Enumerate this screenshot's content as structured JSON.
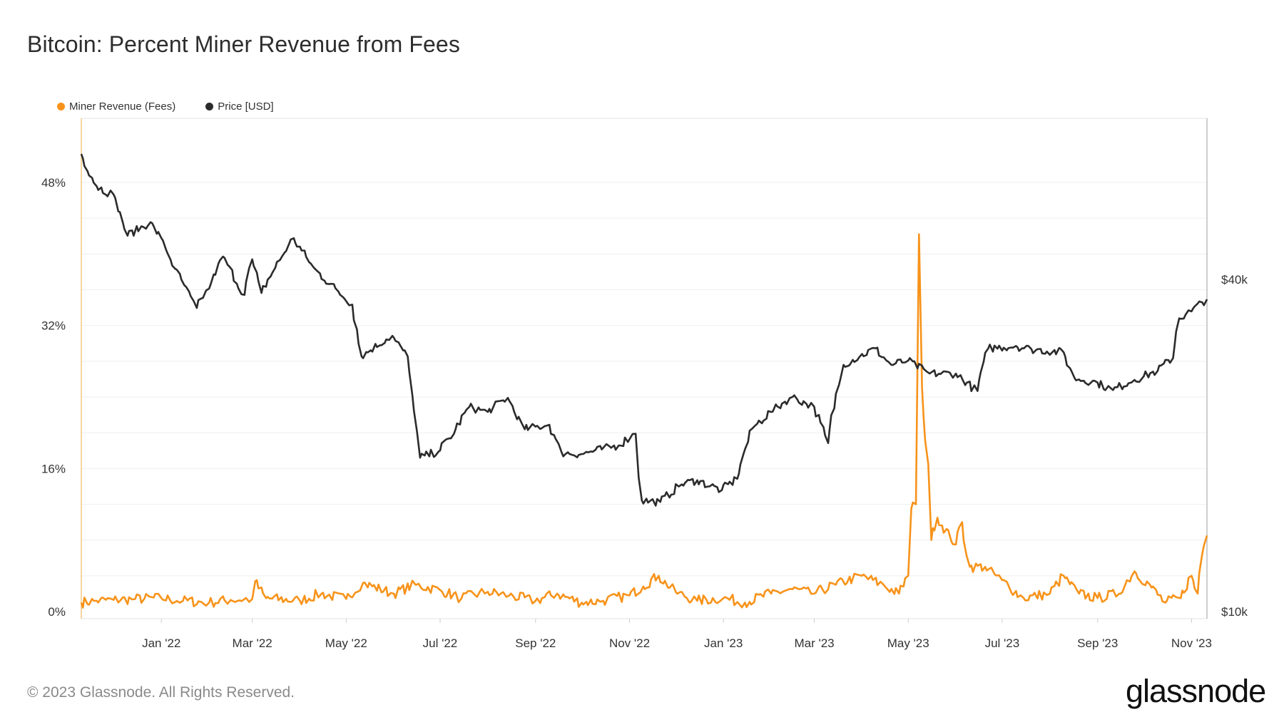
{
  "title": "Bitcoin: Percent Miner Revenue from Fees",
  "footer": "© 2023 Glassnode. All Rights Reserved.",
  "logo_text": "glassnode",
  "colors": {
    "fees": "#f7931a",
    "price": "#2b2b2b",
    "grid": "#ececec"
  },
  "chart_data": {
    "type": "line",
    "title": "Bitcoin: Percent Miner Revenue from Fees",
    "x_ticks": [
      "Jan '22",
      "Mar '22",
      "May '22",
      "Jul '22",
      "Sep '22",
      "Nov '22",
      "Jan '23",
      "Mar '23",
      "May '23",
      "Jul '23",
      "Sep '23",
      "Nov '23"
    ],
    "y_left_ticks": [
      "0%",
      "16%",
      "32%",
      "48%"
    ],
    "y_right_ticks": [
      "$10k",
      "$40k"
    ],
    "ylim_left": [
      0,
      0.56
    ],
    "ylim_right_scale": "log",
    "grid": true,
    "legend_position": "top-left",
    "series": [
      {
        "name": "Miner Revenue (Fees)",
        "axis": "left",
        "unit": "fraction",
        "points": [
          [
            "2021-11-10",
            0.01
          ],
          [
            "2021-11-20",
            0.012
          ],
          [
            "2021-12-01",
            0.013
          ],
          [
            "2021-12-15",
            0.014
          ],
          [
            "2022-01-01",
            0.015
          ],
          [
            "2022-01-15",
            0.012
          ],
          [
            "2022-02-01",
            0.01
          ],
          [
            "2022-02-15",
            0.013
          ],
          [
            "2022-03-01",
            0.014
          ],
          [
            "2022-03-03",
            0.034
          ],
          [
            "2022-03-10",
            0.015
          ],
          [
            "2022-04-01",
            0.012
          ],
          [
            "2022-04-15",
            0.02
          ],
          [
            "2022-05-01",
            0.014
          ],
          [
            "2022-05-12",
            0.032
          ],
          [
            "2022-06-01",
            0.02
          ],
          [
            "2022-06-15",
            0.03
          ],
          [
            "2022-07-01",
            0.024
          ],
          [
            "2022-07-15",
            0.015
          ],
          [
            "2022-08-01",
            0.022
          ],
          [
            "2022-08-15",
            0.018
          ],
          [
            "2022-09-01",
            0.012
          ],
          [
            "2022-09-15",
            0.02
          ],
          [
            "2022-10-01",
            0.01
          ],
          [
            "2022-10-15",
            0.012
          ],
          [
            "2022-11-01",
            0.018
          ],
          [
            "2022-11-10",
            0.028
          ],
          [
            "2022-11-20",
            0.04
          ],
          [
            "2022-12-01",
            0.022
          ],
          [
            "2022-12-15",
            0.012
          ],
          [
            "2023-01-01",
            0.015
          ],
          [
            "2023-01-15",
            0.01
          ],
          [
            "2023-02-01",
            0.02
          ],
          [
            "2023-02-15",
            0.025
          ],
          [
            "2023-03-01",
            0.02
          ],
          [
            "2023-03-15",
            0.03
          ],
          [
            "2023-04-01",
            0.04
          ],
          [
            "2023-04-15",
            0.03
          ],
          [
            "2023-04-25",
            0.02
          ],
          [
            "2023-05-01",
            0.04
          ],
          [
            "2023-05-03",
            0.115
          ],
          [
            "2023-05-06",
            0.12
          ],
          [
            "2023-05-08",
            0.422
          ],
          [
            "2023-05-10",
            0.25
          ],
          [
            "2023-05-14",
            0.165
          ],
          [
            "2023-05-16",
            0.08
          ],
          [
            "2023-05-20",
            0.105
          ],
          [
            "2023-06-01",
            0.075
          ],
          [
            "2023-06-05",
            0.1
          ],
          [
            "2023-06-10",
            0.05
          ],
          [
            "2023-06-20",
            0.05
          ],
          [
            "2023-07-01",
            0.035
          ],
          [
            "2023-07-15",
            0.015
          ],
          [
            "2023-08-01",
            0.02
          ],
          [
            "2023-08-10",
            0.04
          ],
          [
            "2023-08-20",
            0.02
          ],
          [
            "2023-09-01",
            0.015
          ],
          [
            "2023-09-15",
            0.02
          ],
          [
            "2023-09-25",
            0.045
          ],
          [
            "2023-10-05",
            0.03
          ],
          [
            "2023-10-15",
            0.01
          ],
          [
            "2023-10-25",
            0.015
          ],
          [
            "2023-11-01",
            0.04
          ],
          [
            "2023-11-05",
            0.02
          ],
          [
            "2023-11-08",
            0.065
          ],
          [
            "2023-11-11",
            0.085
          ]
        ]
      },
      {
        "name": "Price [USD]",
        "axis": "right",
        "unit": "USD",
        "points": [
          [
            "2021-11-10",
            67500
          ],
          [
            "2021-11-20",
            59000
          ],
          [
            "2021-12-01",
            57000
          ],
          [
            "2021-12-10",
            48000
          ],
          [
            "2021-12-25",
            50800
          ],
          [
            "2022-01-01",
            47500
          ],
          [
            "2022-01-10",
            41800
          ],
          [
            "2022-01-24",
            35500
          ],
          [
            "2022-02-01",
            38500
          ],
          [
            "2022-02-10",
            44000
          ],
          [
            "2022-02-24",
            37500
          ],
          [
            "2022-03-01",
            43500
          ],
          [
            "2022-03-07",
            37800
          ],
          [
            "2022-03-28",
            47500
          ],
          [
            "2022-04-10",
            42000
          ],
          [
            "2022-04-26",
            38000
          ],
          [
            "2022-05-05",
            36000
          ],
          [
            "2022-05-11",
            29000
          ],
          [
            "2022-05-31",
            31600
          ],
          [
            "2022-06-10",
            29000
          ],
          [
            "2022-06-18",
            19000
          ],
          [
            "2022-06-30",
            19500
          ],
          [
            "2022-07-10",
            21000
          ],
          [
            "2022-07-20",
            23500
          ],
          [
            "2022-08-01",
            23000
          ],
          [
            "2022-08-14",
            24400
          ],
          [
            "2022-08-25",
            21400
          ],
          [
            "2022-09-10",
            21800
          ],
          [
            "2022-09-18",
            19400
          ],
          [
            "2022-10-01",
            19300
          ],
          [
            "2022-10-25",
            20000
          ],
          [
            "2022-11-05",
            21000
          ],
          [
            "2022-11-09",
            15900
          ],
          [
            "2022-11-21",
            15800
          ],
          [
            "2022-12-05",
            17000
          ],
          [
            "2022-12-15",
            17300
          ],
          [
            "2022-12-31",
            16600
          ],
          [
            "2023-01-10",
            17400
          ],
          [
            "2023-01-20",
            21500
          ],
          [
            "2023-02-01",
            23000
          ],
          [
            "2023-02-15",
            24500
          ],
          [
            "2023-03-01",
            23500
          ],
          [
            "2023-03-10",
            20200
          ],
          [
            "2023-03-20",
            28000
          ],
          [
            "2023-04-10",
            30000
          ],
          [
            "2023-04-20",
            28000
          ],
          [
            "2023-05-01",
            28500
          ],
          [
            "2023-05-15",
            27000
          ],
          [
            "2023-06-01",
            27000
          ],
          [
            "2023-06-15",
            25100
          ],
          [
            "2023-06-22",
            30000
          ],
          [
            "2023-07-10",
            30300
          ],
          [
            "2023-07-20",
            29900
          ],
          [
            "2023-08-10",
            29500
          ],
          [
            "2023-08-17",
            26500
          ],
          [
            "2023-09-01",
            26000
          ],
          [
            "2023-09-11",
            25200
          ],
          [
            "2023-09-25",
            26300
          ],
          [
            "2023-10-10",
            27300
          ],
          [
            "2023-10-20",
            28800
          ],
          [
            "2023-10-24",
            34000
          ],
          [
            "2023-11-01",
            35000
          ],
          [
            "2023-11-11",
            36800
          ]
        ]
      }
    ]
  }
}
